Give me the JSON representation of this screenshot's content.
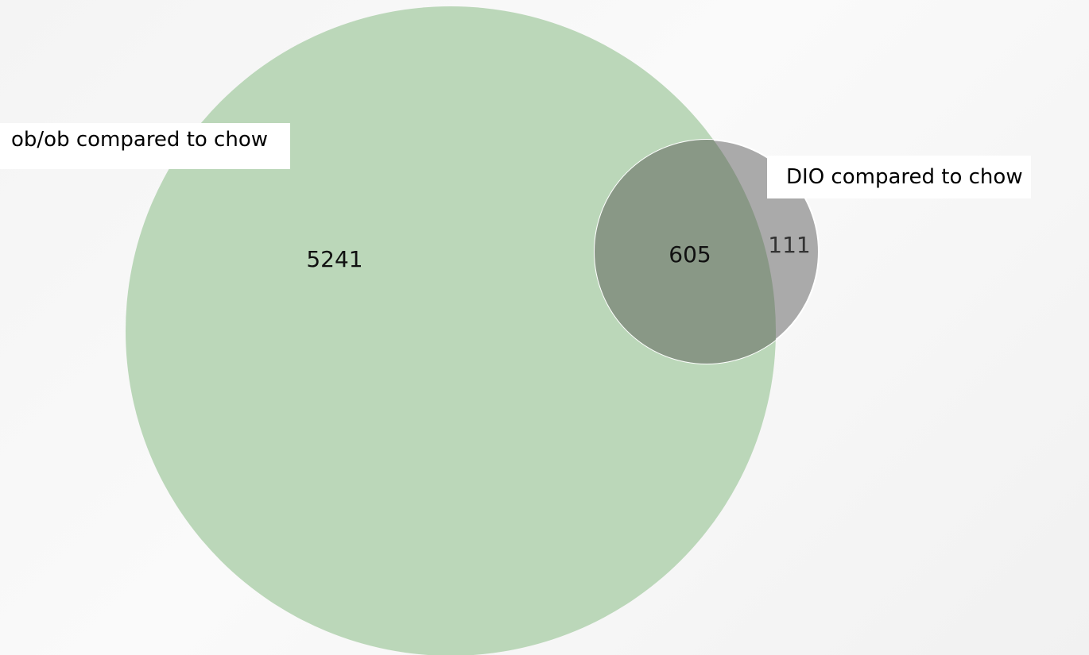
{
  "venn": {
    "set_a": {
      "label": "ob/ob compared to chow",
      "color": "#bbd7b9"
    },
    "set_b": {
      "label": "DIO compared to chow",
      "color": "#aaaaaa"
    },
    "overlap_color": "#899886",
    "regions": {
      "a_only": "5241",
      "both": "605",
      "b_only": "111"
    }
  }
}
